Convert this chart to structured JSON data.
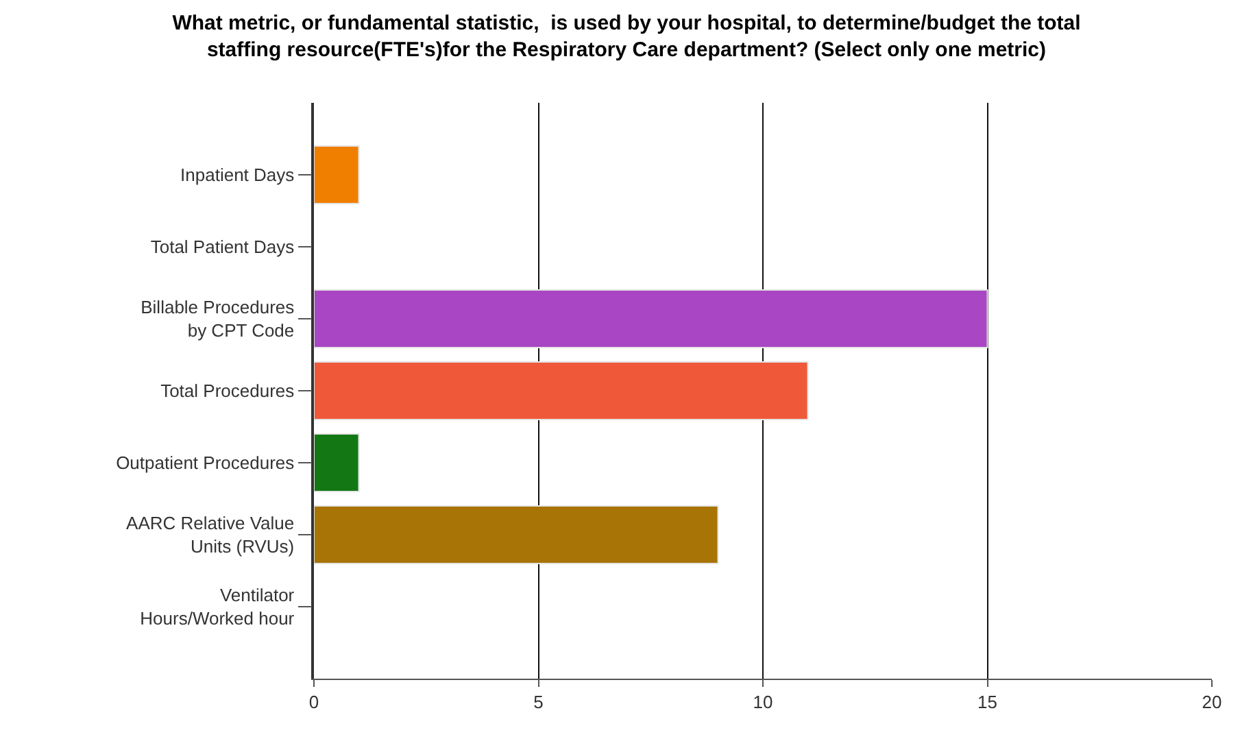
{
  "chart_data": {
    "type": "bar",
    "orientation": "horizontal",
    "title": "What metric, or fundamental statistic,  is used by your hospital, to determine/budget the total\nstaffing resource(FTE's)for the Respiratory Care department? (Select only one metric)",
    "categories": [
      "Inpatient Days",
      "Total Patient Days",
      "Billable Procedures\nby CPT Code",
      "Total Procedures",
      "Outpatient Procedures",
      "AARC Relative Value\nUnits (RVUs)",
      "Ventilator\nHours/Worked hour"
    ],
    "values": [
      1,
      0,
      15,
      11,
      1,
      9,
      0
    ],
    "colors": [
      "#f07f00",
      null,
      "#a846c4",
      "#f0583a",
      "#137813",
      "#a87406",
      null
    ],
    "xlim": [
      0,
      20
    ],
    "xticks": [
      0,
      5,
      10,
      15,
      20
    ],
    "grid": "x"
  }
}
